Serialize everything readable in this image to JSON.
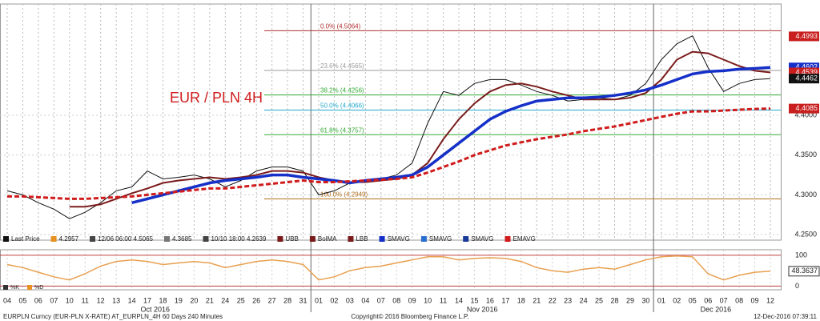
{
  "chart_data": {
    "type": "line",
    "title": "EUR / PLN 4H",
    "categories": [
      "04",
      "05",
      "06",
      "07",
      "10",
      "11",
      "12",
      "13",
      "14",
      "17",
      "18",
      "19",
      "20",
      "21",
      "24",
      "25",
      "26",
      "27",
      "28",
      "31",
      "01",
      "02",
      "03",
      "04",
      "07",
      "08",
      "09",
      "10",
      "11",
      "14",
      "15",
      "16",
      "17",
      "18",
      "21",
      "22",
      "23",
      "24",
      "25",
      "28",
      "29",
      "30",
      "01",
      "02",
      "05",
      "06",
      "07",
      "08",
      "09",
      "12"
    ],
    "months": [
      {
        "label": "Oct 2016",
        "start": 0,
        "end": 19
      },
      {
        "label": "Nov 2016",
        "start": 20,
        "end": 41
      },
      {
        "label": "Dec 2016",
        "start": 42,
        "end": 49
      }
    ],
    "ylim": [
      4.243,
      4.54
    ],
    "yticks": [
      {
        "value": 4.25,
        "label": "4.2500"
      },
      {
        "value": 4.3,
        "label": "4.3000"
      },
      {
        "value": 4.35,
        "label": "4.3500"
      },
      {
        "value": 4.4,
        "label": "4.4000"
      }
    ],
    "series": [
      {
        "name": "Last Price",
        "color": "#111111",
        "width": 1,
        "dash": false,
        "values": [
          4.305,
          4.3,
          4.29,
          4.282,
          4.27,
          4.278,
          4.29,
          4.305,
          4.31,
          4.33,
          4.32,
          4.322,
          4.325,
          4.32,
          4.31,
          4.318,
          4.33,
          4.335,
          4.335,
          4.33,
          4.3,
          4.305,
          4.315,
          4.318,
          4.32,
          4.325,
          4.34,
          4.39,
          4.43,
          4.425,
          4.44,
          4.445,
          4.445,
          4.438,
          4.43,
          4.425,
          4.418,
          4.42,
          4.422,
          4.42,
          4.425,
          4.44,
          4.47,
          4.49,
          4.5,
          4.46,
          4.43,
          4.44,
          4.445,
          4.4462
        ]
      },
      {
        "name": "BolMA",
        "color": "#7a1b1b",
        "width": 2,
        "dash": false,
        "values": [
          null,
          null,
          null,
          null,
          4.285,
          4.285,
          4.288,
          4.295,
          4.302,
          4.308,
          4.315,
          4.318,
          4.32,
          4.322,
          4.32,
          4.322,
          4.325,
          4.33,
          4.33,
          4.328,
          4.322,
          4.318,
          4.316,
          4.316,
          4.318,
          4.32,
          4.325,
          4.34,
          4.37,
          4.395,
          4.415,
          4.43,
          4.438,
          4.44,
          4.436,
          4.43,
          4.425,
          4.42,
          4.42,
          4.42,
          4.422,
          4.428,
          4.445,
          4.47,
          4.48,
          4.478,
          4.47,
          4.462,
          4.456,
          4.4539
        ]
      },
      {
        "name": "SMAVG",
        "color": "#1530c8",
        "width": 3.5,
        "dash": false,
        "values": [
          null,
          null,
          null,
          null,
          null,
          null,
          null,
          null,
          4.29,
          4.295,
          4.3,
          4.305,
          4.31,
          4.315,
          4.318,
          4.32,
          4.322,
          4.325,
          4.325,
          4.322,
          4.32,
          4.318,
          4.315,
          4.318,
          4.32,
          4.322,
          4.325,
          4.335,
          4.35,
          4.365,
          4.38,
          4.395,
          4.405,
          4.412,
          4.418,
          4.42,
          4.422,
          4.422,
          4.423,
          4.425,
          4.428,
          4.432,
          4.438,
          4.445,
          4.452,
          4.455,
          4.456,
          4.458,
          4.459,
          4.4602
        ]
      },
      {
        "name": "EMAVG",
        "color": "#d01c1c",
        "width": 3,
        "dash": true,
        "values": [
          4.298,
          4.298,
          4.297,
          4.296,
          4.295,
          4.295,
          4.296,
          4.297,
          4.298,
          4.3,
          4.302,
          4.304,
          4.306,
          4.308,
          4.308,
          4.31,
          4.312,
          4.314,
          4.316,
          4.318,
          4.316,
          4.316,
          4.317,
          4.318,
          4.319,
          4.32,
          4.322,
          4.328,
          4.335,
          4.342,
          4.35,
          4.356,
          4.362,
          4.366,
          4.37,
          4.373,
          4.376,
          4.38,
          4.383,
          4.386,
          4.39,
          4.394,
          4.398,
          4.402,
          4.405,
          4.405,
          4.406,
          4.407,
          4.408,
          4.4085
        ]
      }
    ],
    "fib_levels": [
      {
        "label": "0.0% (4.5064)",
        "value": 4.5064,
        "color": "#b03030"
      },
      {
        "label": "23.6% (4.4565)",
        "value": 4.4565,
        "color": "#999999"
      },
      {
        "label": "38.2% (4.4256)",
        "value": 4.4256,
        "color": "#33aa33"
      },
      {
        "label": "50.0% (4.4066)",
        "value": 4.4066,
        "color": "#22aacc"
      },
      {
        "label": "61.8% (4.3757)",
        "value": 4.3757,
        "color": "#33aa33"
      },
      {
        "label": "100.0% (4.2949)",
        "value": 4.2949,
        "color": "#b07020"
      }
    ],
    "price_tags": [
      {
        "value": 4.4993,
        "color": "#c81e1e"
      },
      {
        "value": 4.4602,
        "color": "#1530c8"
      },
      {
        "value": 4.4539,
        "color": "#c81e1e"
      },
      {
        "value": 4.4462,
        "color": "#111111"
      },
      {
        "value": 4.4085,
        "color": "#c81e1e"
      }
    ],
    "legend": [
      {
        "label": "Last Price",
        "color": "#111111"
      },
      {
        "label": "4.2957",
        "color": "#e89020"
      },
      {
        "label": "12/06 06:00 4.5065",
        "color": "#444444"
      },
      {
        "label": "4.3685",
        "color": "#777777"
      },
      {
        "label": "10/10 18:00 4.2639",
        "color": "#444444"
      },
      {
        "label": "UBB",
        "color": "#7a1b1b"
      },
      {
        "label": "BolMA",
        "color": "#7a1b1b"
      },
      {
        "label": "LBB",
        "color": "#7a1b1b"
      },
      {
        "label": "SMAVG",
        "color": "#1530c8"
      },
      {
        "label": "SMAVG",
        "color": "#2a6fd0"
      },
      {
        "label": "SMAVG",
        "color": "#1a3a9a"
      },
      {
        "label": "EMAVG",
        "color": "#d01c1c"
      }
    ],
    "oscillator": {
      "ylim": [
        -12,
        118
      ],
      "yticks": [
        0,
        100
      ],
      "last": 48.3637,
      "legend": [
        {
          "label": "%K",
          "color": "#333333"
        },
        {
          "label": "%D",
          "color": "#e89020"
        }
      ],
      "series": {
        "name": "%K",
        "color": "#e8a050",
        "values": [
          70,
          60,
          45,
          30,
          20,
          40,
          65,
          80,
          85,
          80,
          70,
          75,
          80,
          75,
          60,
          70,
          80,
          85,
          80,
          70,
          20,
          30,
          50,
          60,
          65,
          75,
          85,
          95,
          95,
          85,
          90,
          92,
          90,
          80,
          60,
          50,
          45,
          55,
          60,
          55,
          70,
          85,
          95,
          98,
          95,
          40,
          20,
          35,
          45,
          48.3637
        ]
      }
    },
    "footer": {
      "left": "EURPLN Curncy (EUR-PLN X-RATE) AT_EURPLN_4H 60 Days 240 Minutes",
      "center": "Copyright© 2016 Bloomberg Finance L.P.",
      "right": "12-Dec-2016 07:39:11"
    }
  }
}
